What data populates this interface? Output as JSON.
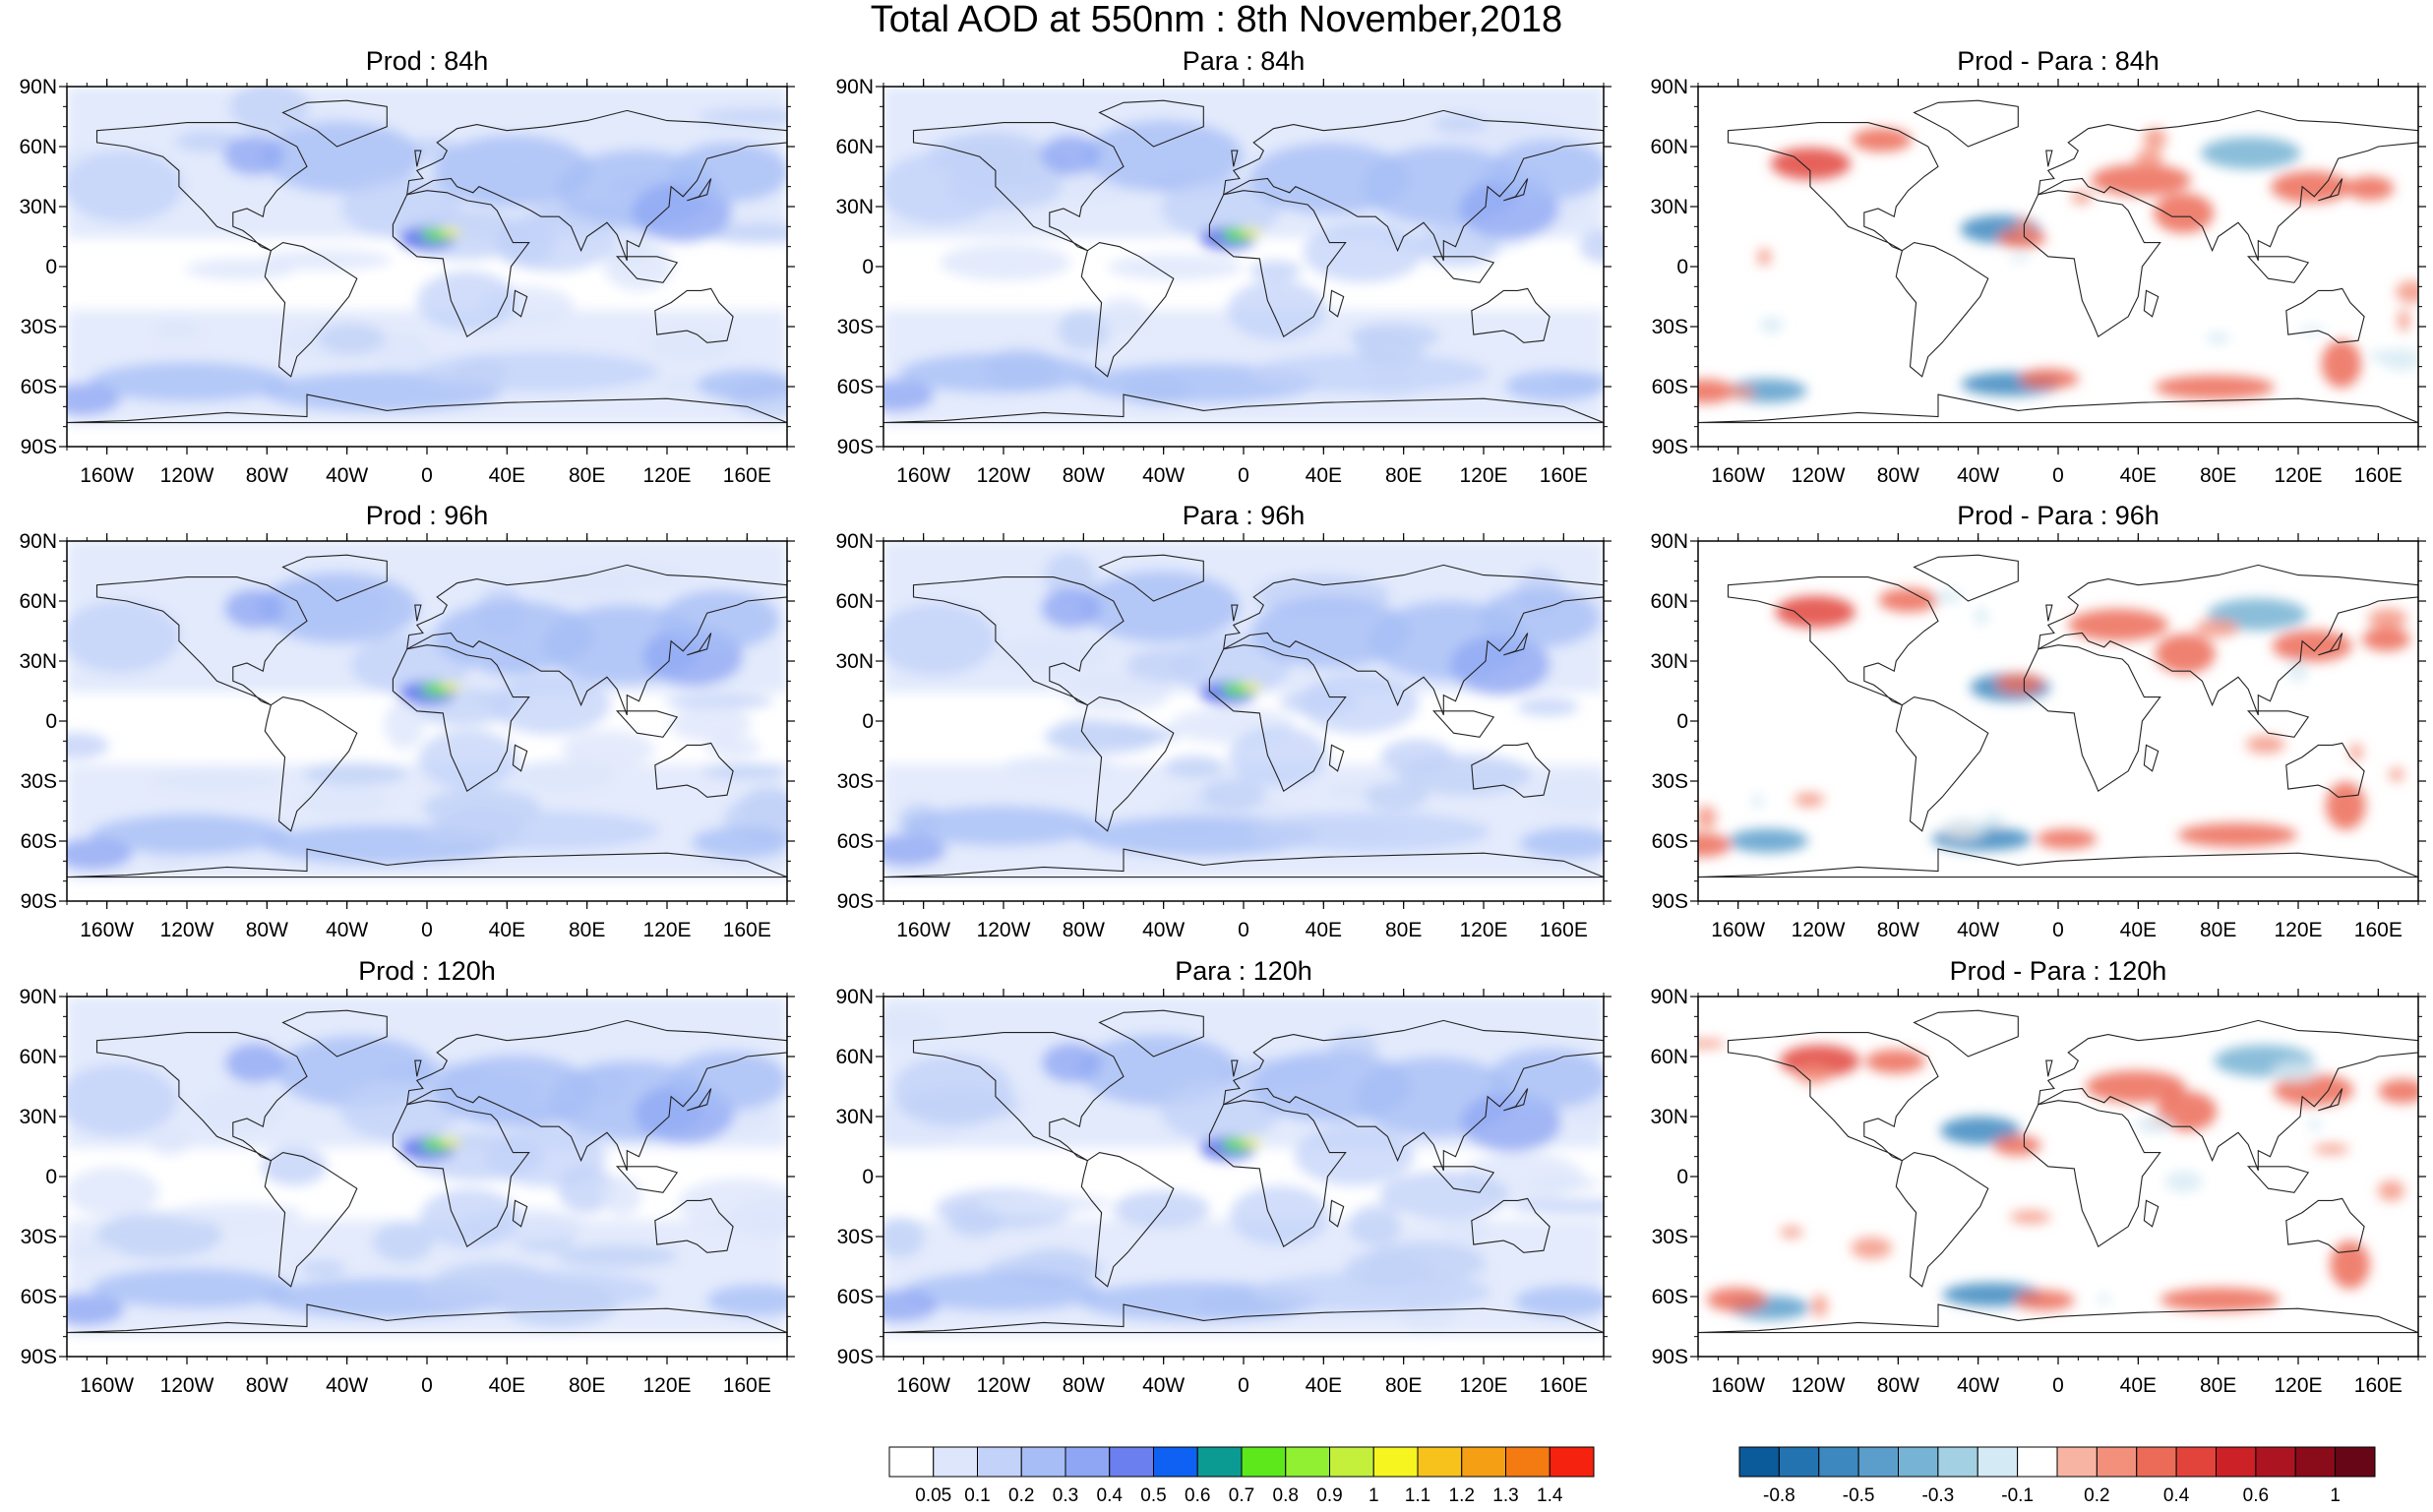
{
  "title": "Total AOD at 550nm : 8th November,2018",
  "panels": [
    {
      "label": "Prod : 84h",
      "kind": "aod",
      "row": 0,
      "col": 0
    },
    {
      "label": "Para : 84h",
      "kind": "aod",
      "row": 0,
      "col": 1
    },
    {
      "label": "Prod - Para : 84h",
      "kind": "diff",
      "row": 0,
      "col": 2
    },
    {
      "label": "Prod : 96h",
      "kind": "aod",
      "row": 1,
      "col": 0
    },
    {
      "label": "Para : 96h",
      "kind": "aod",
      "row": 1,
      "col": 1
    },
    {
      "label": "Prod - Para : 96h",
      "kind": "diff",
      "row": 1,
      "col": 2
    },
    {
      "label": "Prod : 120h",
      "kind": "aod",
      "row": 2,
      "col": 0
    },
    {
      "label": "Para : 120h",
      "kind": "aod",
      "row": 2,
      "col": 1
    },
    {
      "label": "Prod - Para : 120h",
      "kind": "diff",
      "row": 2,
      "col": 2
    }
  ],
  "axes": {
    "lat_ticks": [
      "90N",
      "60N",
      "30N",
      "0",
      "30S",
      "60S",
      "90S"
    ],
    "lon_ticks": [
      "160W",
      "120W",
      "80W",
      "40W",
      "0",
      "40E",
      "80E",
      "120E",
      "160E"
    ]
  },
  "aod_colorbar": {
    "colors": [
      "#ffffff",
      "#dde6fb",
      "#c2d2f8",
      "#a6bdf5",
      "#8ea6f3",
      "#6c7fee",
      "#0e61f2",
      "#0c9b93",
      "#5de81c",
      "#90f031",
      "#c4f03c",
      "#f6f51f",
      "#f6c21b",
      "#f59f15",
      "#f47a12",
      "#f4220e"
    ],
    "labels": [
      "0.05",
      "0.1",
      "0.2",
      "0.3",
      "0.4",
      "0.5",
      "0.6",
      "0.7",
      "0.8",
      "0.9",
      "1",
      "1.1",
      "1.2",
      "1.3",
      "1.4"
    ]
  },
  "diff_colorbar": {
    "colors": [
      "#0b5a9a",
      "#2373b0",
      "#3c88bf",
      "#5b9ecb",
      "#76b3d4",
      "#a3d0e2",
      "#d4eaf4",
      "#ffffff",
      "#f7b4a2",
      "#f2907c",
      "#ec6b58",
      "#e2443c",
      "#cc2127",
      "#ad1422",
      "#8a0b1a",
      "#670616"
    ],
    "labels": [
      "-0.8",
      "-0.5",
      "-0.3",
      "-0.1",
      "0.2",
      "0.4",
      "0.6",
      "1"
    ]
  },
  "colors": {
    "land_outline": "#222222",
    "aod_base": "#dde6fb",
    "diff_neg": "#4a92c6",
    "diff_pos": "#e2443c"
  }
}
